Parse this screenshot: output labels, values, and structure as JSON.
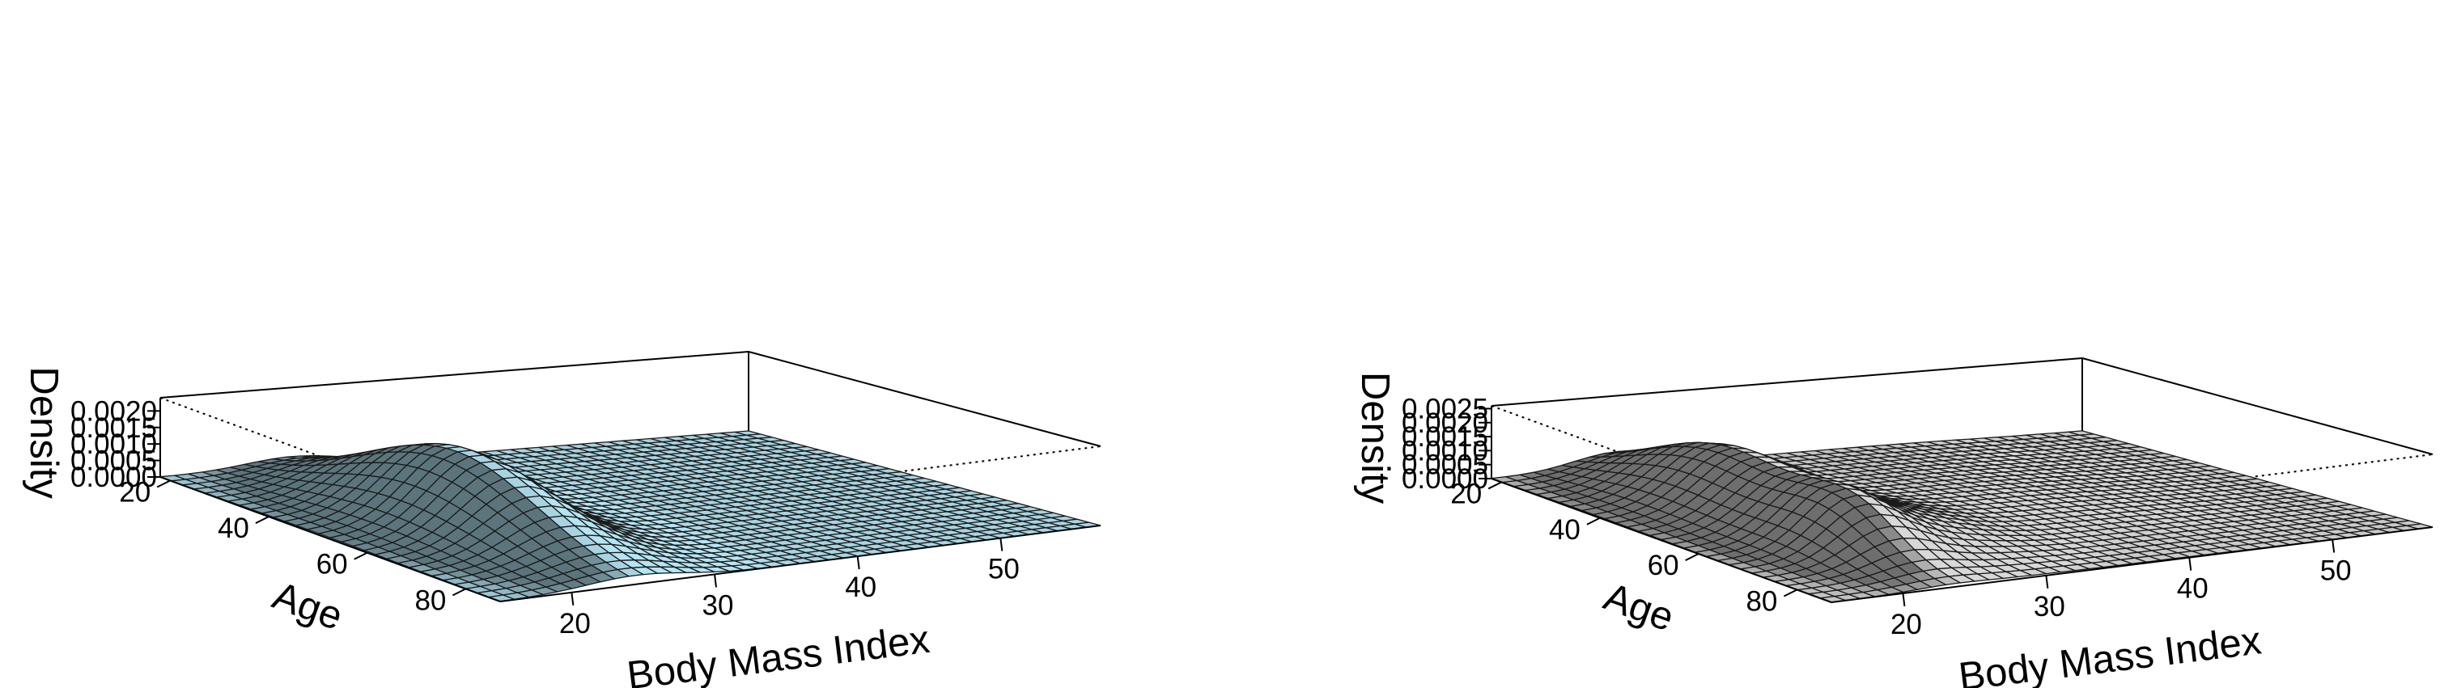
{
  "chart_data": [
    {
      "type": "surface",
      "fill_color": "#a8d4e2",
      "x": {
        "label": "Body Mass Index",
        "ticks": [
          20,
          30,
          40,
          50
        ],
        "range": [
          15,
          57
        ]
      },
      "y": {
        "label": "Age",
        "ticks": [
          20,
          40,
          60,
          80
        ],
        "range": [
          18,
          87
        ]
      },
      "z": {
        "label": "Density",
        "ticks": [
          "0.0000",
          "0.0005",
          "0.0010",
          "0.0015",
          "0.0020"
        ],
        "range": [
          0,
          0.0024
        ]
      },
      "peak": {
        "bmi": 24,
        "age": 50,
        "density": 0.00228
      }
    },
    {
      "type": "surface",
      "fill_color": "#c8c8c8",
      "x": {
        "label": "Body Mass Index",
        "ticks": [
          20,
          30,
          40,
          50
        ],
        "range": [
          15,
          57
        ]
      },
      "y": {
        "label": "Age",
        "ticks": [
          20,
          40,
          60,
          80
        ],
        "range": [
          18,
          87
        ]
      },
      "z": {
        "label": "Density",
        "ticks": [
          "0.0000",
          "0.0005",
          "0.0010",
          "0.0015",
          "0.0020",
          "0.0025"
        ],
        "range": [
          0,
          0.0026
        ]
      },
      "peak": {
        "bmi": 23.5,
        "age": 60,
        "density": 0.0025
      }
    }
  ]
}
